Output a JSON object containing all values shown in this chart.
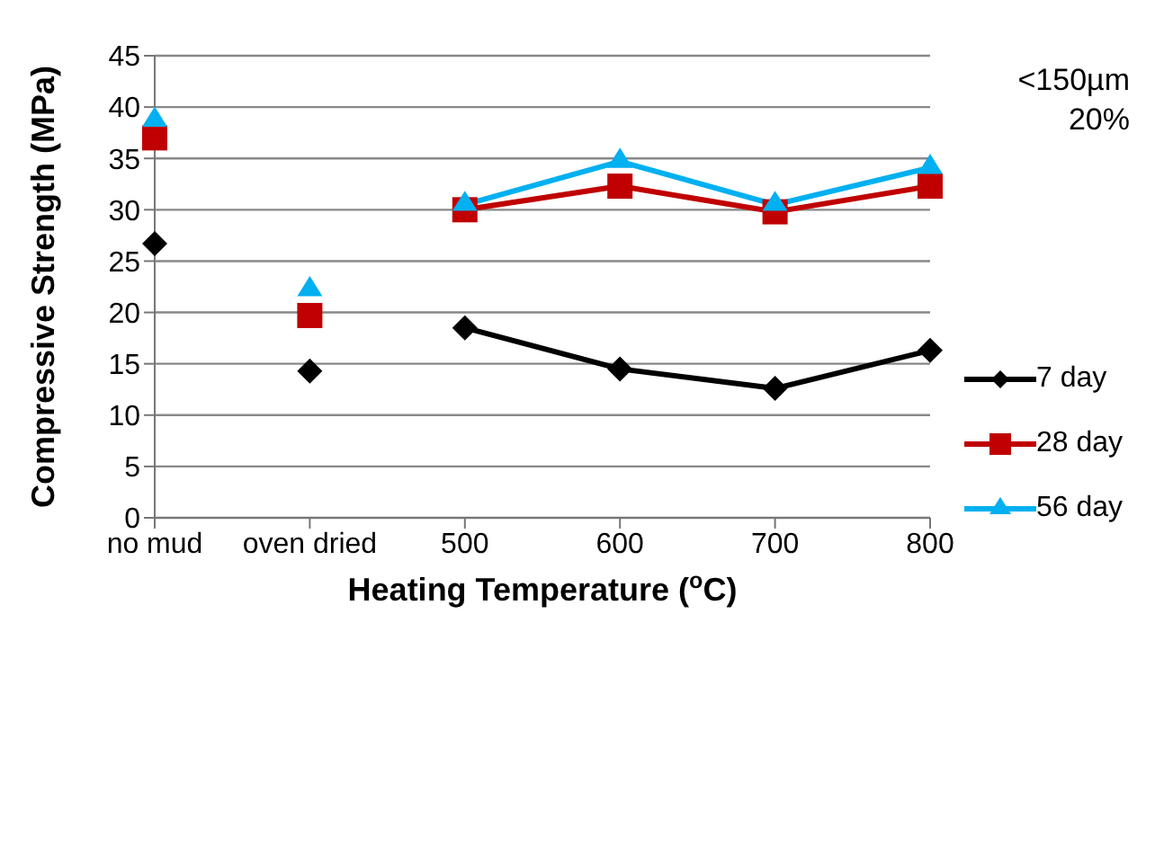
{
  "chart_data": {
    "type": "line",
    "xlabel": "Heating Temperature ($^{o}$C)",
    "ylabel": "Compressive Strength (MPa)",
    "categories": [
      "no mud",
      "oven dried",
      "500",
      "600",
      "700",
      "800"
    ],
    "series": [
      {
        "name": "7 day",
        "color": "#000000",
        "marker": "diamond",
        "values": [
          null,
          null,
          18.5,
          14.5,
          12.6,
          16.3
        ]
      },
      {
        "name": "28 day",
        "color": "#c00000",
        "marker": "square",
        "values": [
          null,
          null,
          30.0,
          32.3,
          29.8,
          32.3
        ]
      },
      {
        "name": "56 day",
        "color": "#00b0f0",
        "marker": "triangle",
        "values": [
          null,
          null,
          30.5,
          34.7,
          30.5,
          34.1
        ]
      },
      {
        "type": "scatter",
        "color": "#000000",
        "marker": "diamond",
        "values": [
          26.7,
          14.3,
          null,
          null,
          null,
          null
        ]
      },
      {
        "type": "scatter",
        "color": "#c00000",
        "marker": "square",
        "values": [
          37.0,
          19.7,
          null,
          null,
          null,
          null
        ]
      },
      {
        "type": "scatter",
        "color": "#00b0f0",
        "marker": "triangle",
        "values": [
          38.7,
          22.2,
          null,
          null,
          null,
          null
        ]
      }
    ],
    "ylim": [
      0,
      45
    ],
    "yticks": [
      0,
      5,
      10,
      15,
      20,
      25,
      30,
      35,
      40,
      45
    ],
    "grid": "y",
    "legend": "right",
    "annotations": [
      "<150µm",
      "20%"
    ]
  }
}
